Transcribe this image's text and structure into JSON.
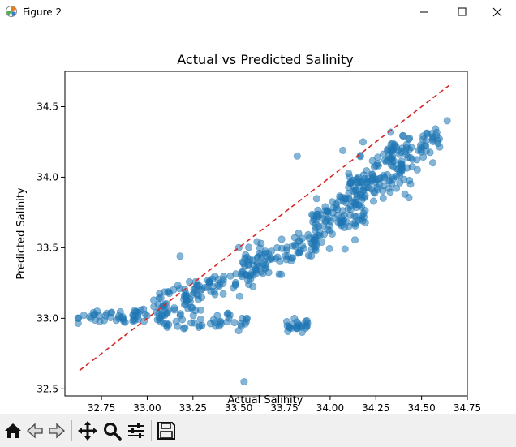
{
  "window": {
    "title": "Figure 2",
    "controls": [
      "minimize-icon",
      "maximize-icon",
      "close-icon"
    ]
  },
  "toolbar": {
    "buttons": [
      {
        "name": "home-button",
        "icon": "home-icon"
      },
      {
        "name": "back-button",
        "icon": "back-arrow-icon"
      },
      {
        "name": "forward-button",
        "icon": "forward-arrow-icon"
      },
      {
        "name": "pan-button",
        "icon": "move-icon"
      },
      {
        "name": "zoom-button",
        "icon": "magnifier-icon"
      },
      {
        "name": "configure-subplots-button",
        "icon": "sliders-icon"
      },
      {
        "name": "save-button",
        "icon": "floppy-disk-icon"
      }
    ]
  },
  "chart_data": {
    "type": "scatter",
    "title": "Actual vs Predicted Salinity",
    "xlabel": "Actual Salinity",
    "ylabel": "Predicted Salinity",
    "xlim": [
      32.55,
      34.75
    ],
    "ylim": [
      32.45,
      34.75
    ],
    "xticks": [
      "32.75",
      "33.00",
      "33.25",
      "33.50",
      "33.75",
      "34.00",
      "34.25",
      "34.50",
      "34.75"
    ],
    "yticks": [
      "32.5",
      "33.0",
      "33.5",
      "34.0",
      "34.5"
    ],
    "grid": false,
    "point_color": "#1f77b4",
    "point_alpha": 0.55,
    "reference_line": {
      "style": "dashed",
      "color": "#d62728",
      "x": [
        32.63,
        34.65
      ],
      "y": [
        32.63,
        34.65
      ]
    },
    "clusters": [
      {
        "x_range": [
          32.62,
          33.0
        ],
        "y_center": 33.02,
        "y_spread": 0.04,
        "count": 45
      },
      {
        "x_range": [
          33.0,
          33.3
        ],
        "y_center": 33.12,
        "y_spread": 0.08,
        "count": 45
      },
      {
        "x_range": [
          33.05,
          33.55
        ],
        "y_center": 32.98,
        "y_spread": 0.05,
        "count": 50
      },
      {
        "x_range": [
          33.2,
          33.65
        ],
        "y_center": 33.27,
        "y_spread": 0.07,
        "count": 65
      },
      {
        "x_range": [
          33.5,
          33.95
        ],
        "y_center": 33.45,
        "y_spread": 0.08,
        "count": 80
      },
      {
        "x_range": [
          33.9,
          34.2
        ],
        "y_center": 33.72,
        "y_spread": 0.12,
        "count": 110
      },
      {
        "x_range": [
          34.1,
          34.45
        ],
        "y_center": 34.0,
        "y_spread": 0.12,
        "count": 110
      },
      {
        "x_range": [
          34.3,
          34.6
        ],
        "y_center": 34.2,
        "y_spread": 0.08,
        "count": 60
      },
      {
        "x_range": [
          33.76,
          33.88
        ],
        "y_center": 32.95,
        "y_spread": 0.03,
        "count": 25
      }
    ],
    "outliers": [
      {
        "x": 33.53,
        "y": 32.55
      },
      {
        "x": 33.18,
        "y": 33.44
      },
      {
        "x": 33.82,
        "y": 34.15
      },
      {
        "x": 34.07,
        "y": 34.19
      },
      {
        "x": 34.64,
        "y": 34.4
      },
      {
        "x": 34.18,
        "y": 34.25
      },
      {
        "x": 33.27,
        "y": 33.23
      }
    ]
  }
}
